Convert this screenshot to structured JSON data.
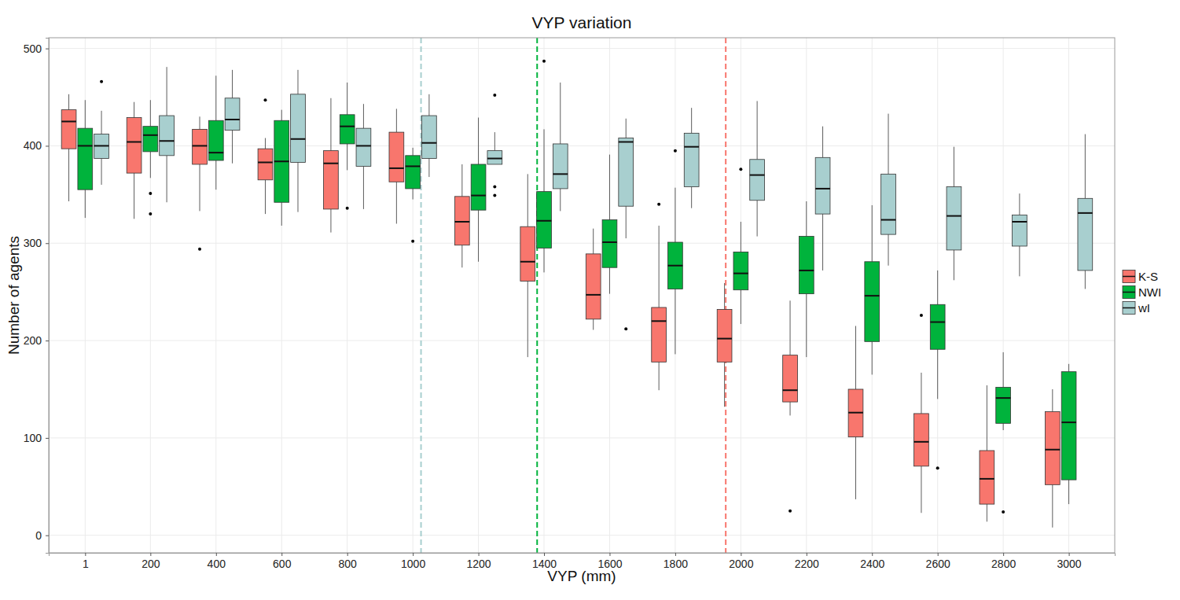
{
  "chart_data": {
    "type": "box",
    "title": "VYP variation",
    "x_label": "VYP (mm)",
    "y_label": "Number of agents",
    "x": [
      1,
      200,
      400,
      600,
      800,
      1000,
      1200,
      1400,
      1600,
      1800,
      2000,
      2200,
      2400,
      2600,
      2800,
      3000
    ],
    "xlim": [
      -110,
      3140
    ],
    "xticks": [
      1,
      200,
      400,
      600,
      800,
      1000,
      1200,
      1400,
      1600,
      1800,
      2000,
      2200,
      2400,
      2600,
      2800,
      3000
    ],
    "ylim": [
      -18,
      511
    ],
    "yticks": [
      0,
      100,
      200,
      300,
      400,
      500
    ],
    "grid": true,
    "legend": "right",
    "thresholds": [
      {
        "value": 1025,
        "color": "#a8cfcf"
      },
      {
        "value": 1379,
        "color": "#00b33c"
      },
      {
        "value": 1954,
        "color": "#f8766d"
      }
    ],
    "series": [
      {
        "name": "K-S",
        "color": "#f8766d",
        "values": [
          {
            "min": 343,
            "q1": 397,
            "median": 425,
            "q3": 437,
            "max": 453,
            "outliers": []
          },
          {
            "min": 325,
            "q1": 372,
            "median": 404,
            "q3": 429,
            "max": 445,
            "outliers": []
          },
          {
            "min": 333,
            "q1": 381,
            "median": 400,
            "q3": 417,
            "max": 430,
            "outliers": [
              294
            ]
          },
          {
            "min": 330,
            "q1": 365,
            "median": 383,
            "q3": 397,
            "max": 408,
            "outliers": [
              447
            ]
          },
          {
            "min": 311,
            "q1": 335,
            "median": 382,
            "q3": 395,
            "max": 449,
            "outliers": []
          },
          {
            "min": 320,
            "q1": 363,
            "median": 377,
            "q3": 414,
            "max": 438,
            "outliers": []
          },
          {
            "min": 275,
            "q1": 298,
            "median": 322,
            "q3": 348,
            "max": 381,
            "outliers": []
          },
          {
            "min": 183,
            "q1": 261,
            "median": 281,
            "q3": 317,
            "max": 371,
            "outliers": []
          },
          {
            "min": 211,
            "q1": 222,
            "median": 247,
            "q3": 289,
            "max": 315,
            "outliers": []
          },
          {
            "min": 149,
            "q1": 178,
            "median": 220,
            "q3": 234,
            "max": 318,
            "outliers": [
              340
            ]
          },
          {
            "min": 132,
            "q1": 178,
            "median": 202,
            "q3": 232,
            "max": 259,
            "outliers": []
          },
          {
            "min": 123,
            "q1": 137,
            "median": 149,
            "q3": 185,
            "max": 241,
            "outliers": [
              25
            ]
          },
          {
            "min": 37,
            "q1": 101,
            "median": 126,
            "q3": 150,
            "max": 215,
            "outliers": []
          },
          {
            "min": 23,
            "q1": 71,
            "median": 96,
            "q3": 125,
            "max": 167,
            "outliers": [
              226
            ]
          },
          {
            "min": 14,
            "q1": 32,
            "median": 58,
            "q3": 87,
            "max": 154,
            "outliers": []
          },
          {
            "min": 8,
            "q1": 52,
            "median": 88,
            "q3": 127,
            "max": 150,
            "outliers": []
          }
        ]
      },
      {
        "name": "NWI",
        "color": "#00b33c",
        "values": [
          {
            "min": 326,
            "q1": 355,
            "median": 400,
            "q3": 418,
            "max": 447,
            "outliers": []
          },
          {
            "min": 367,
            "q1": 394,
            "median": 411,
            "q3": 420,
            "max": 447,
            "outliers": [
              351,
              330
            ]
          },
          {
            "min": 355,
            "q1": 385,
            "median": 393,
            "q3": 426,
            "max": 472,
            "outliers": []
          },
          {
            "min": 318,
            "q1": 342,
            "median": 384,
            "q3": 426,
            "max": 437,
            "outliers": []
          },
          {
            "min": 375,
            "q1": 402,
            "median": 420,
            "q3": 432,
            "max": 465,
            "outliers": [
              336
            ]
          },
          {
            "min": 345,
            "q1": 356,
            "median": 379,
            "q3": 390,
            "max": 398,
            "outliers": [
              302
            ]
          },
          {
            "min": 281,
            "q1": 334,
            "median": 349,
            "q3": 381,
            "max": 429,
            "outliers": []
          },
          {
            "min": 270,
            "q1": 295,
            "median": 323,
            "q3": 353,
            "max": 417,
            "outliers": [
              487
            ]
          },
          {
            "min": 248,
            "q1": 275,
            "median": 301,
            "q3": 324,
            "max": 391,
            "outliers": []
          },
          {
            "min": 186,
            "q1": 253,
            "median": 277,
            "q3": 301,
            "max": 357,
            "outliers": [
              395
            ]
          },
          {
            "min": 217,
            "q1": 252,
            "median": 269,
            "q3": 291,
            "max": 322,
            "outliers": [
              376
            ]
          },
          {
            "min": 183,
            "q1": 248,
            "median": 272,
            "q3": 307,
            "max": 343,
            "outliers": []
          },
          {
            "min": 165,
            "q1": 199,
            "median": 246,
            "q3": 281,
            "max": 339,
            "outliers": []
          },
          {
            "min": 140,
            "q1": 191,
            "median": 219,
            "q3": 237,
            "max": 272,
            "outliers": [
              69
            ]
          },
          {
            "min": 108,
            "q1": 115,
            "median": 141,
            "q3": 152,
            "max": 188,
            "outliers": [
              24
            ]
          },
          {
            "min": 32,
            "q1": 57,
            "median": 116,
            "q3": 168,
            "max": 176,
            "outliers": []
          }
        ]
      },
      {
        "name": "wI",
        "color": "#a8cfcf",
        "values": [
          {
            "min": 360,
            "q1": 387,
            "median": 400,
            "q3": 412,
            "max": 436,
            "outliers": [
              466
            ]
          },
          {
            "min": 342,
            "q1": 390,
            "median": 405,
            "q3": 431,
            "max": 481,
            "outliers": []
          },
          {
            "min": 382,
            "q1": 416,
            "median": 427,
            "q3": 449,
            "max": 478,
            "outliers": []
          },
          {
            "min": 332,
            "q1": 383,
            "median": 407,
            "q3": 453,
            "max": 478,
            "outliers": []
          },
          {
            "min": 335,
            "q1": 379,
            "median": 400,
            "q3": 418,
            "max": 443,
            "outliers": []
          },
          {
            "min": 368,
            "q1": 387,
            "median": 403,
            "q3": 431,
            "max": 453,
            "outliers": []
          },
          {
            "min": 381,
            "q1": 381,
            "median": 387,
            "q3": 395,
            "max": 414,
            "outliers": [
              452,
              358,
              349
            ]
          },
          {
            "min": 333,
            "q1": 356,
            "median": 371,
            "q3": 402,
            "max": 465,
            "outliers": []
          },
          {
            "min": 305,
            "q1": 338,
            "median": 404,
            "q3": 408,
            "max": 428,
            "outliers": [
              212
            ]
          },
          {
            "min": 336,
            "q1": 358,
            "median": 399,
            "q3": 413,
            "max": 439,
            "outliers": []
          },
          {
            "min": 307,
            "q1": 344,
            "median": 370,
            "q3": 386,
            "max": 446,
            "outliers": []
          },
          {
            "min": 272,
            "q1": 330,
            "median": 356,
            "q3": 388,
            "max": 420,
            "outliers": []
          },
          {
            "min": 277,
            "q1": 309,
            "median": 324,
            "q3": 371,
            "max": 433,
            "outliers": []
          },
          {
            "min": 262,
            "q1": 293,
            "median": 328,
            "q3": 358,
            "max": 399,
            "outliers": []
          },
          {
            "min": 266,
            "q1": 297,
            "median": 322,
            "q3": 329,
            "max": 351,
            "outliers": []
          },
          {
            "min": 253,
            "q1": 272,
            "median": 331,
            "q3": 346,
            "max": 412,
            "outliers": []
          }
        ]
      }
    ]
  }
}
